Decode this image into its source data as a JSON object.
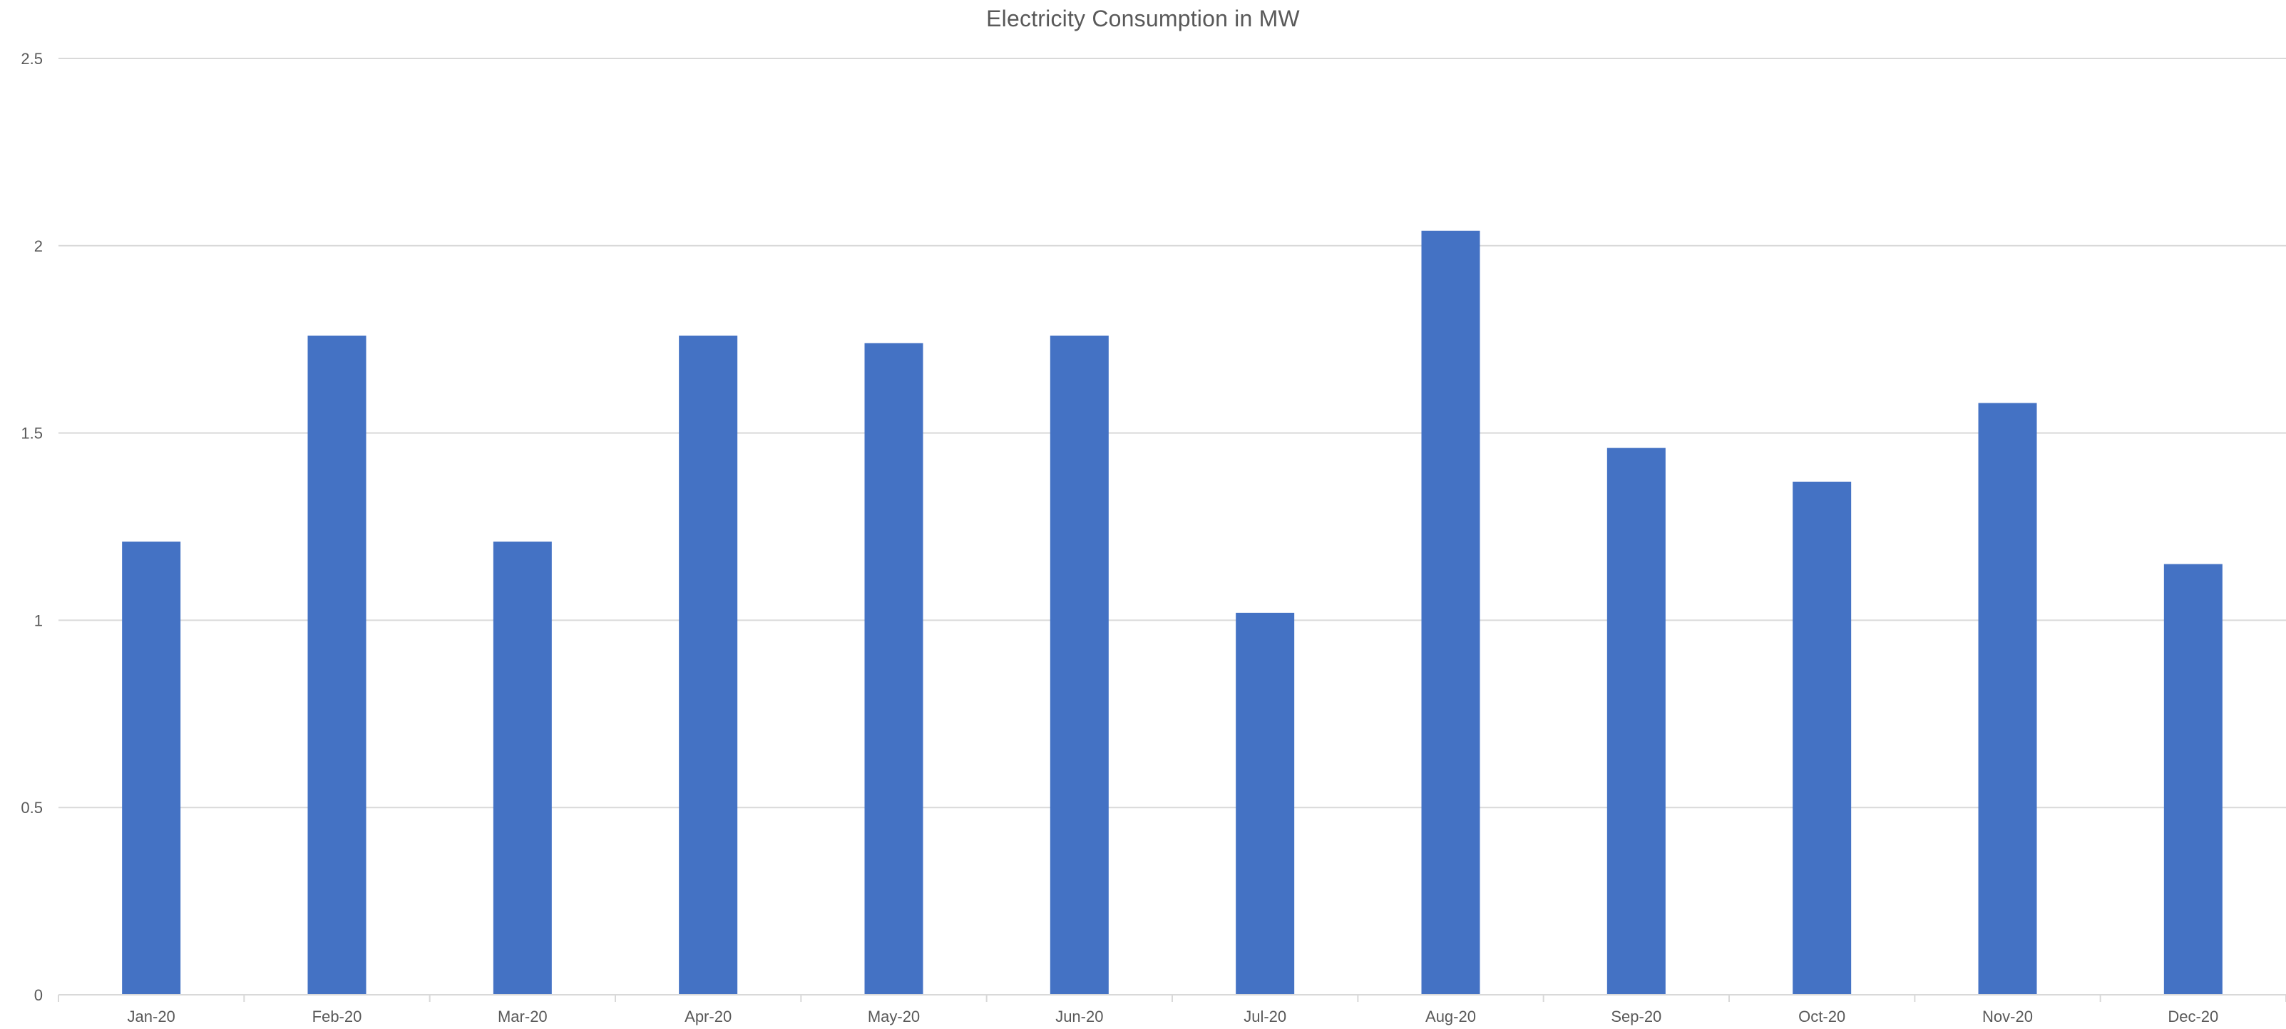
{
  "chart_data": {
    "type": "bar",
    "title": "Electricity Consumption in MW",
    "xlabel": "",
    "ylabel": "",
    "categories": [
      "Jan-20",
      "Feb-20",
      "Mar-20",
      "Apr-20",
      "May-20",
      "Jun-20",
      "Jul-20",
      "Aug-20",
      "Sep-20",
      "Oct-20",
      "Nov-20",
      "Dec-20"
    ],
    "values": [
      1.21,
      1.76,
      1.21,
      1.76,
      1.74,
      1.76,
      1.02,
      2.04,
      1.46,
      1.37,
      1.58,
      1.15
    ],
    "ylim": [
      0,
      2.5
    ],
    "yticks": [
      "0",
      "0.5",
      "1",
      "1.5",
      "2",
      "2.5"
    ],
    "grid": true,
    "legend": "none",
    "bar_color": "#4472C4"
  }
}
